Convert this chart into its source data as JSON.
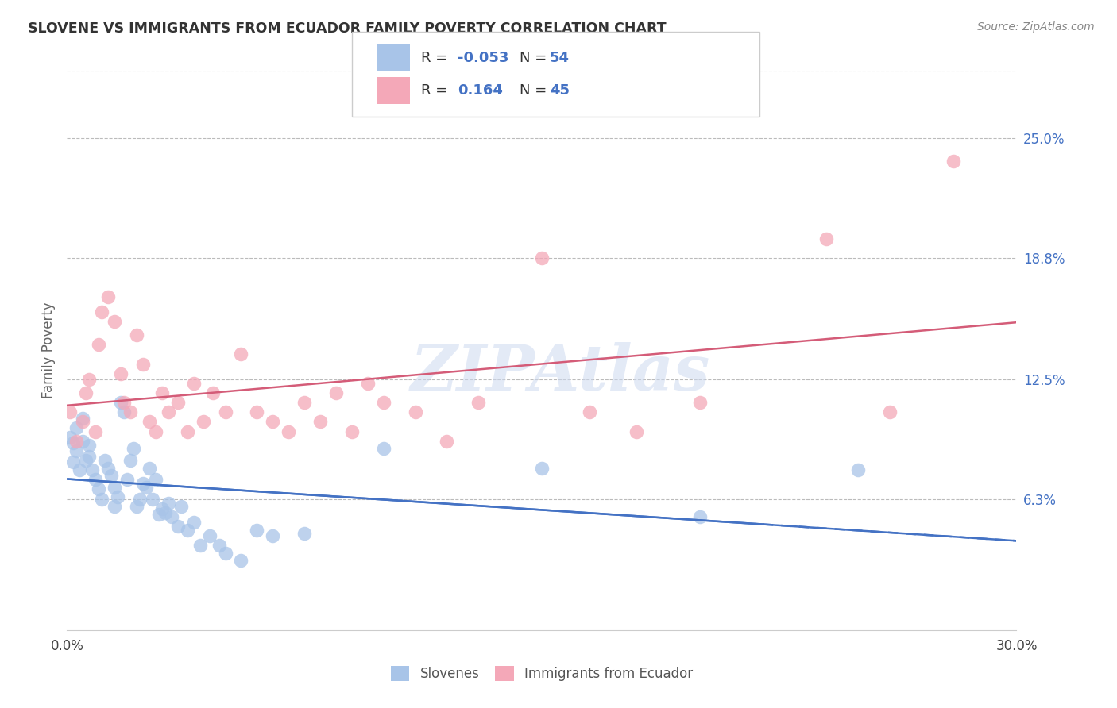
{
  "title": "SLOVENE VS IMMIGRANTS FROM ECUADOR FAMILY POVERTY CORRELATION CHART",
  "source": "Source: ZipAtlas.com",
  "ylabel": "Family Poverty",
  "xlim": [
    0.0,
    0.3
  ],
  "ylim": [
    -0.005,
    0.285
  ],
  "yticks": [
    0.063,
    0.125,
    0.188,
    0.25
  ],
  "ytick_labels": [
    "6.3%",
    "12.5%",
    "18.8%",
    "25.0%"
  ],
  "xticks": [
    0.0,
    0.05,
    0.1,
    0.15,
    0.2,
    0.25,
    0.3
  ],
  "xtick_labels": [
    "0.0%",
    "",
    "",
    "",
    "",
    "",
    "30.0%"
  ],
  "legend_label1": "Slovenes",
  "legend_label2": "Immigrants from Ecuador",
  "R1": "-0.053",
  "N1": "54",
  "R2": "0.164",
  "N2": "45",
  "color_blue": "#a8c4e8",
  "color_pink": "#f4a8b8",
  "line_blue": "#4472c4",
  "line_pink": "#d45c78",
  "watermark": "ZIPAtlas",
  "slovene_x": [
    0.001,
    0.002,
    0.002,
    0.003,
    0.003,
    0.004,
    0.005,
    0.005,
    0.006,
    0.007,
    0.007,
    0.008,
    0.009,
    0.01,
    0.011,
    0.012,
    0.013,
    0.014,
    0.015,
    0.015,
    0.016,
    0.017,
    0.018,
    0.019,
    0.02,
    0.021,
    0.022,
    0.023,
    0.024,
    0.025,
    0.026,
    0.027,
    0.028,
    0.029,
    0.03,
    0.031,
    0.032,
    0.033,
    0.035,
    0.036,
    0.038,
    0.04,
    0.042,
    0.045,
    0.048,
    0.05,
    0.055,
    0.06,
    0.065,
    0.075,
    0.1,
    0.15,
    0.2,
    0.25
  ],
  "slovene_y": [
    0.095,
    0.082,
    0.092,
    0.1,
    0.088,
    0.078,
    0.093,
    0.105,
    0.083,
    0.091,
    0.085,
    0.078,
    0.073,
    0.068,
    0.063,
    0.083,
    0.079,
    0.075,
    0.059,
    0.069,
    0.064,
    0.113,
    0.108,
    0.073,
    0.083,
    0.089,
    0.059,
    0.063,
    0.071,
    0.069,
    0.079,
    0.063,
    0.073,
    0.055,
    0.058,
    0.056,
    0.061,
    0.054,
    0.049,
    0.059,
    0.047,
    0.051,
    0.039,
    0.044,
    0.039,
    0.035,
    0.031,
    0.047,
    0.044,
    0.045,
    0.089,
    0.079,
    0.054,
    0.078
  ],
  "ecuador_x": [
    0.001,
    0.003,
    0.005,
    0.006,
    0.007,
    0.009,
    0.01,
    0.011,
    0.013,
    0.015,
    0.017,
    0.018,
    0.02,
    0.022,
    0.024,
    0.026,
    0.028,
    0.03,
    0.032,
    0.035,
    0.038,
    0.04,
    0.043,
    0.046,
    0.05,
    0.055,
    0.06,
    0.065,
    0.07,
    0.075,
    0.08,
    0.085,
    0.09,
    0.095,
    0.1,
    0.11,
    0.12,
    0.13,
    0.15,
    0.165,
    0.18,
    0.2,
    0.24,
    0.26,
    0.28
  ],
  "ecuador_y": [
    0.108,
    0.093,
    0.103,
    0.118,
    0.125,
    0.098,
    0.143,
    0.16,
    0.168,
    0.155,
    0.128,
    0.113,
    0.108,
    0.148,
    0.133,
    0.103,
    0.098,
    0.118,
    0.108,
    0.113,
    0.098,
    0.123,
    0.103,
    0.118,
    0.108,
    0.138,
    0.108,
    0.103,
    0.098,
    0.113,
    0.103,
    0.118,
    0.098,
    0.123,
    0.113,
    0.108,
    0.093,
    0.113,
    0.188,
    0.108,
    0.098,
    0.113,
    0.198,
    0.108,
    0.238
  ]
}
